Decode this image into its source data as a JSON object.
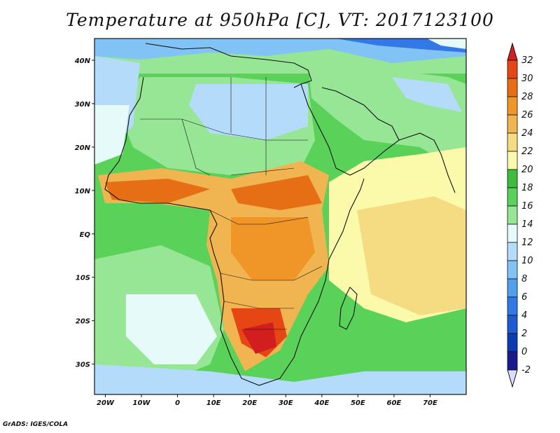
{
  "title": "Temperature at 950hPa [C], VT: 2017123100",
  "credit": "GrADS: IGES/COLA",
  "map": {
    "lon_range": [
      -23,
      80
    ],
    "lat_range": [
      -37,
      45
    ],
    "x_ticks": [
      "20W",
      "10W",
      "0",
      "10E",
      "20E",
      "30E",
      "40E",
      "50E",
      "60E",
      "70E"
    ],
    "x_tick_values": [
      -20,
      -10,
      0,
      10,
      20,
      30,
      40,
      50,
      60,
      70
    ],
    "y_ticks": [
      "40N",
      "30N",
      "20N",
      "10N",
      "EQ",
      "10S",
      "20S",
      "30S"
    ],
    "y_tick_values": [
      40,
      30,
      20,
      10,
      0,
      -10,
      -20,
      -30
    ]
  },
  "colorbar": {
    "levels": [
      "-2",
      "0",
      "2",
      "4",
      "6",
      "8",
      "10",
      "12",
      "14",
      "16",
      "18",
      "20",
      "22",
      "24",
      "26",
      "28",
      "30",
      "32"
    ],
    "colors": [
      "#1a1a8c",
      "#0a3cb4",
      "#1e5ad2",
      "#3278e6",
      "#50a0f0",
      "#82c3f5",
      "#b4dcfa",
      "#e6fafa",
      "#96e696",
      "#5ad25a",
      "#3cbe3c",
      "#fafaaa",
      "#f5dc82",
      "#f0b450",
      "#f09628",
      "#e66e14",
      "#e64614",
      "#d21e1e",
      "#dcdcff"
    ]
  }
}
